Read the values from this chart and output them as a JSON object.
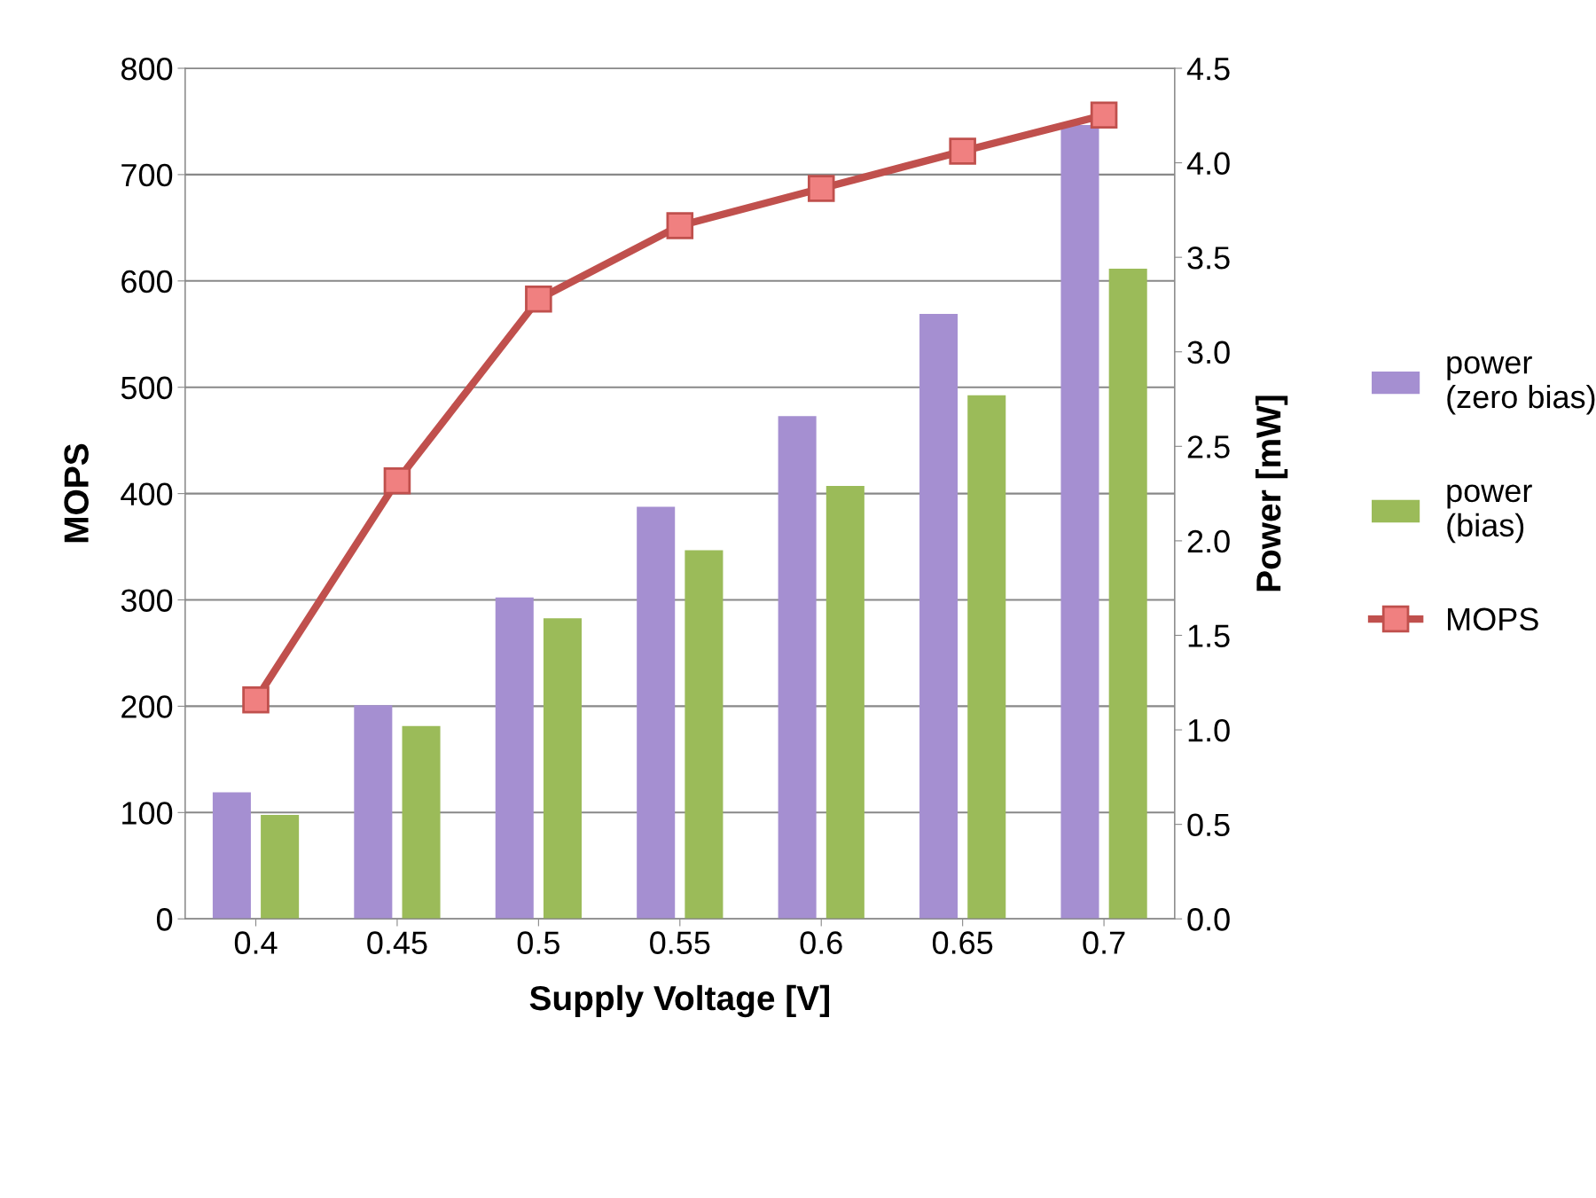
{
  "chart_data": {
    "type": "bar",
    "xlabel": "Supply Voltage [V]",
    "ylabel": "MOPS",
    "y2label": "Power [mW]",
    "categories": [
      "0.4",
      "0.45",
      "0.5",
      "0.55",
      "0.6",
      "0.65",
      "0.7"
    ],
    "series": [
      {
        "name": "power\n(zero bias)",
        "color": "#a58fd1",
        "axis": "y2",
        "values": [
          0.67,
          1.13,
          1.7,
          2.18,
          2.66,
          3.2,
          4.2
        ]
      },
      {
        "name": "power\n(bias)",
        "color": "#9bbb59",
        "axis": "y2",
        "values": [
          0.55,
          1.02,
          1.59,
          1.95,
          2.29,
          2.77,
          3.44
        ]
      },
      {
        "name": "MOPS",
        "type": "line",
        "color": "#c0504d",
        "marker": "square",
        "values": [
          206,
          412,
          583,
          652,
          687,
          722,
          756
        ]
      }
    ],
    "ylim": [
      0,
      800
    ],
    "yticks": [
      0,
      100,
      200,
      300,
      400,
      500,
      600,
      700,
      800
    ],
    "y2lim": [
      0,
      4.5
    ],
    "y2ticks": [
      {
        "value": 0,
        "label": "0.0"
      },
      {
        "value": 0.5,
        "label": "0.5"
      },
      {
        "value": 1,
        "label": "1.0"
      },
      {
        "value": 1.5,
        "label": "1.5"
      },
      {
        "value": 2,
        "label": "2.0"
      },
      {
        "value": 2.5,
        "label": "2.5"
      },
      {
        "value": 3,
        "label": "3.0"
      },
      {
        "value": 3.5,
        "label": "3.5"
      },
      {
        "value": 4,
        "label": "4.0"
      },
      {
        "value": 4.5,
        "label": "4.5"
      }
    ],
    "grid": "y",
    "legend": "right"
  }
}
